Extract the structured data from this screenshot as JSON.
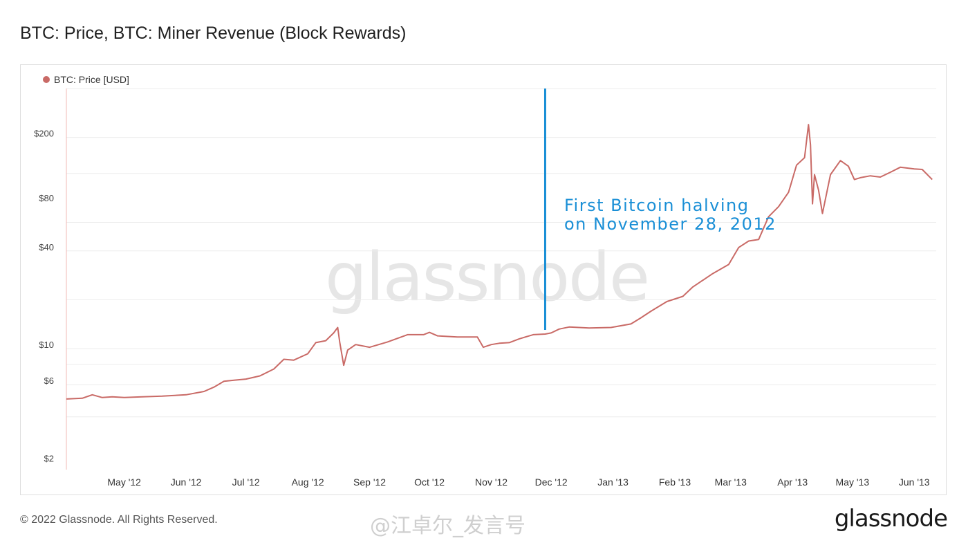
{
  "title": "BTC: Price, BTC: Miner Revenue (Block Rewards)",
  "legend": {
    "label": "BTC: Price [USD]",
    "color": "#c96a66"
  },
  "watermark": "glassnode",
  "footer": {
    "copyright": "© 2022 Glassnode. All Rights Reserved.",
    "logo": "glassnode",
    "social_tag": "@江卓尔_发言号"
  },
  "annotation": {
    "line1": "First Bitcoin halving",
    "line2": "on November 28, 2012",
    "color": "#1a8fd6",
    "date": "2012-11-28"
  },
  "chart_data": {
    "type": "line",
    "y_scale": "log",
    "ylim": [
      1.8,
      400
    ],
    "y_ticks": [
      {
        "value": 200,
        "label": "$200"
      },
      {
        "value": 80,
        "label": "$80"
      },
      {
        "value": 40,
        "label": "$40"
      },
      {
        "value": 10,
        "label": "$10"
      },
      {
        "value": 6,
        "label": "$6"
      },
      {
        "value": 2,
        "label": "$2"
      }
    ],
    "gridlines": [
      3.8,
      6,
      8,
      10,
      20,
      40,
      60,
      120,
      200,
      400
    ],
    "x_range": [
      "2012-04-02",
      "2013-06-12"
    ],
    "x_ticks": [
      {
        "date": "2012-05-01",
        "label": "May '12"
      },
      {
        "date": "2012-06-01",
        "label": "Jun '12"
      },
      {
        "date": "2012-07-01",
        "label": "Jul '12"
      },
      {
        "date": "2012-08-01",
        "label": "Aug '12"
      },
      {
        "date": "2012-09-01",
        "label": "Sep '12"
      },
      {
        "date": "2012-10-01",
        "label": "Oct '12"
      },
      {
        "date": "2012-11-01",
        "label": "Nov '12"
      },
      {
        "date": "2012-12-01",
        "label": "Dec '12"
      },
      {
        "date": "2013-01-01",
        "label": "Jan '13"
      },
      {
        "date": "2013-02-01",
        "label": "Feb '13"
      },
      {
        "date": "2013-03-01",
        "label": "Mar '13"
      },
      {
        "date": "2013-04-01",
        "label": "Apr '13"
      },
      {
        "date": "2013-05-01",
        "label": "May '13"
      },
      {
        "date": "2013-06-01",
        "label": "Jun '13"
      }
    ],
    "series": [
      {
        "color": "#c96a66",
        "points": [
          [
            "2012-04-02",
            4.9
          ],
          [
            "2012-04-10",
            4.95
          ],
          [
            "2012-04-15",
            5.2
          ],
          [
            "2012-04-20",
            5.0
          ],
          [
            "2012-04-25",
            5.05
          ],
          [
            "2012-05-01",
            5.0
          ],
          [
            "2012-05-10",
            5.05
          ],
          [
            "2012-05-20",
            5.1
          ],
          [
            "2012-06-01",
            5.2
          ],
          [
            "2012-06-10",
            5.45
          ],
          [
            "2012-06-15",
            5.8
          ],
          [
            "2012-06-20",
            6.3
          ],
          [
            "2012-06-25",
            6.4
          ],
          [
            "2012-07-01",
            6.5
          ],
          [
            "2012-07-08",
            6.8
          ],
          [
            "2012-07-15",
            7.5
          ],
          [
            "2012-07-20",
            8.6
          ],
          [
            "2012-07-25",
            8.5
          ],
          [
            "2012-08-01",
            9.3
          ],
          [
            "2012-08-05",
            10.9
          ],
          [
            "2012-08-10",
            11.2
          ],
          [
            "2012-08-14",
            12.5
          ],
          [
            "2012-08-16",
            13.5
          ],
          [
            "2012-08-17",
            11.0
          ],
          [
            "2012-08-19",
            7.9
          ],
          [
            "2012-08-21",
            9.8
          ],
          [
            "2012-08-25",
            10.6
          ],
          [
            "2012-09-01",
            10.2
          ],
          [
            "2012-09-10",
            11.0
          ],
          [
            "2012-09-20",
            12.2
          ],
          [
            "2012-09-28",
            12.2
          ],
          [
            "2012-10-01",
            12.6
          ],
          [
            "2012-10-05",
            12.0
          ],
          [
            "2012-10-15",
            11.8
          ],
          [
            "2012-10-25",
            11.8
          ],
          [
            "2012-10-28",
            10.2
          ],
          [
            "2012-11-01",
            10.6
          ],
          [
            "2012-11-05",
            10.8
          ],
          [
            "2012-11-10",
            10.9
          ],
          [
            "2012-11-15",
            11.5
          ],
          [
            "2012-11-22",
            12.2
          ],
          [
            "2012-11-28",
            12.3
          ],
          [
            "2012-12-01",
            12.5
          ],
          [
            "2012-12-05",
            13.2
          ],
          [
            "2012-12-10",
            13.6
          ],
          [
            "2012-12-20",
            13.4
          ],
          [
            "2012-12-31",
            13.5
          ],
          [
            "2013-01-10",
            14.2
          ],
          [
            "2013-01-15",
            15.5
          ],
          [
            "2013-01-20",
            17.0
          ],
          [
            "2013-01-28",
            19.5
          ],
          [
            "2013-02-05",
            21.0
          ],
          [
            "2013-02-10",
            24.0
          ],
          [
            "2013-02-20",
            29.0
          ],
          [
            "2013-02-28",
            33.0
          ],
          [
            "2013-03-05",
            42.0
          ],
          [
            "2013-03-10",
            46.0
          ],
          [
            "2013-03-15",
            47.0
          ],
          [
            "2013-03-20",
            65.0
          ],
          [
            "2013-03-25",
            75.0
          ],
          [
            "2013-03-30",
            92.0
          ],
          [
            "2013-04-03",
            135.0
          ],
          [
            "2013-04-07",
            150.0
          ],
          [
            "2013-04-09",
            240.0
          ],
          [
            "2013-04-10",
            180.0
          ],
          [
            "2013-04-11",
            78.0
          ],
          [
            "2013-04-12",
            118.0
          ],
          [
            "2013-04-14",
            95.0
          ],
          [
            "2013-04-16",
            68.0
          ],
          [
            "2013-04-20",
            118.0
          ],
          [
            "2013-04-25",
            144.0
          ],
          [
            "2013-04-29",
            133.0
          ],
          [
            "2013-05-02",
            110.0
          ],
          [
            "2013-05-05",
            113.0
          ],
          [
            "2013-05-10",
            116.0
          ],
          [
            "2013-05-15",
            114.0
          ],
          [
            "2013-05-20",
            122.0
          ],
          [
            "2013-05-25",
            131.0
          ],
          [
            "2013-06-01",
            128.0
          ],
          [
            "2013-06-05",
            127.0
          ],
          [
            "2013-06-10",
            110.0
          ]
        ]
      }
    ]
  }
}
